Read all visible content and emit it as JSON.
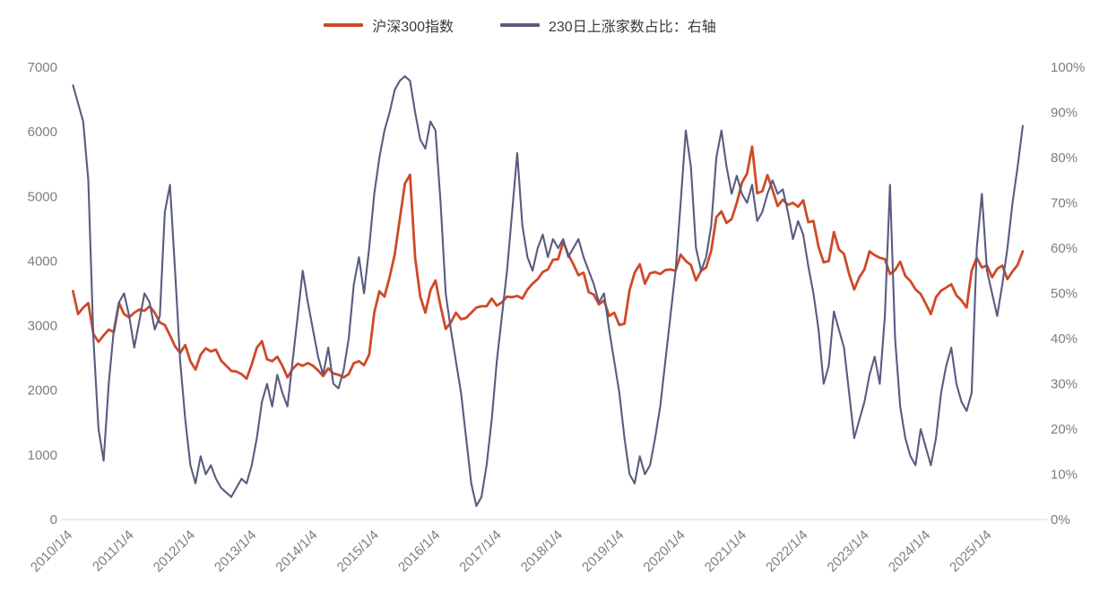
{
  "page": {
    "background": "#ffffff"
  },
  "legend": {
    "items": [
      {
        "label": "沪深300指数",
        "color": "#CE4A28"
      },
      {
        "label": "230日上涨家数占比：右轴",
        "color": "#585C7F"
      }
    ]
  },
  "chart_data": {
    "type": "line",
    "title": "",
    "grid": false,
    "legend_position": "top-center",
    "x_axis": {
      "range": [
        2009.95,
        2025.75
      ],
      "tick_years": [
        2010,
        2011,
        2012,
        2013,
        2014,
        2015,
        2016,
        2017,
        2018,
        2019,
        2020,
        2021,
        2022,
        2023,
        2024,
        2025
      ],
      "labels": [
        "2010/1/4",
        "2011/1/4",
        "2012/1/4",
        "2013/1/4",
        "2014/1/4",
        "2015/1/4",
        "2016/1/4",
        "2017/1/4",
        "2018/1/4",
        "2019/1/4",
        "2020/1/4",
        "2021/1/4",
        "2022/1/4",
        "2023/1/4",
        "2024/1/4",
        "2025/1/4"
      ]
    },
    "left_axis": {
      "range": [
        0,
        7000
      ],
      "ticks": [
        0,
        1000,
        2000,
        3000,
        4000,
        5000,
        6000,
        7000
      ],
      "series": "沪深300指数"
    },
    "right_axis": {
      "range": [
        0,
        100
      ],
      "tick_labels": [
        "0%",
        "10%",
        "20%",
        "30%",
        "40%",
        "50%",
        "60%",
        "70%",
        "80%",
        "90%",
        "100%"
      ],
      "series": "230日上涨家数占比"
    },
    "x_start_year": 2010.0,
    "x_step_years": 0.0833333,
    "series": [
      {
        "name": "沪深300指数",
        "axis": "left",
        "color": "#CE4A28",
        "values": [
          3535,
          3180,
          3280,
          3350,
          2870,
          2750,
          2850,
          2940,
          2900,
          3350,
          3180,
          3128,
          3200,
          3250,
          3230,
          3300,
          3200,
          3050,
          3010,
          2850,
          2680,
          2580,
          2700,
          2450,
          2320,
          2550,
          2650,
          2600,
          2630,
          2460,
          2380,
          2300,
          2290,
          2250,
          2180,
          2400,
          2660,
          2760,
          2480,
          2450,
          2520,
          2380,
          2200,
          2330,
          2410,
          2380,
          2420,
          2380,
          2310,
          2220,
          2340,
          2260,
          2240,
          2200,
          2250,
          2420,
          2450,
          2390,
          2550,
          3200,
          3530,
          3450,
          3750,
          4100,
          4650,
          5200,
          5335,
          4050,
          3450,
          3200,
          3550,
          3700,
          3300,
          2950,
          3050,
          3200,
          3100,
          3120,
          3200,
          3280,
          3300,
          3300,
          3420,
          3310,
          3360,
          3450,
          3440,
          3460,
          3420,
          3560,
          3650,
          3720,
          3830,
          3870,
          4020,
          4030,
          4300,
          4100,
          3950,
          3780,
          3820,
          3520,
          3480,
          3330,
          3390,
          3150,
          3200,
          3010,
          3030,
          3550,
          3820,
          3950,
          3650,
          3810,
          3830,
          3800,
          3860,
          3870,
          3850,
          4100,
          4000,
          3940,
          3700,
          3850,
          3900,
          4160,
          4680,
          4770,
          4590,
          4650,
          4900,
          5210,
          5350,
          5770,
          5050,
          5080,
          5330,
          5100,
          4850,
          4950,
          4870,
          4900,
          4840,
          4940,
          4600,
          4620,
          4220,
          3980,
          4000,
          4450,
          4180,
          4110,
          3800,
          3560,
          3750,
          3870,
          4150,
          4090,
          4050,
          4030,
          3800,
          3860,
          3990,
          3770,
          3690,
          3560,
          3490,
          3340,
          3180,
          3440,
          3540,
          3590,
          3640,
          3470,
          3390,
          3280,
          3850,
          4050,
          3900,
          3930,
          3750,
          3880,
          3930,
          3720,
          3840,
          3940,
          4150
        ]
      },
      {
        "name": "230日上涨家数占比：右轴",
        "axis": "right",
        "color": "#585C7F",
        "values": [
          96,
          92,
          88,
          75,
          40,
          20,
          13,
          30,
          42,
          48,
          50,
          45,
          38,
          44,
          50,
          48,
          42,
          45,
          68,
          74,
          55,
          35,
          22,
          12,
          8,
          14,
          10,
          12,
          9,
          7,
          6,
          5,
          7,
          9,
          8,
          12,
          18,
          26,
          30,
          25,
          32,
          28,
          25,
          35,
          45,
          55,
          48,
          42,
          36,
          32,
          38,
          30,
          29,
          33,
          40,
          52,
          58,
          50,
          60,
          72,
          80,
          86,
          90,
          95,
          97,
          98,
          97,
          90,
          84,
          82,
          88,
          86,
          70,
          50,
          42,
          35,
          28,
          18,
          8,
          3,
          5,
          12,
          22,
          35,
          45,
          55,
          68,
          81,
          65,
          58,
          55,
          60,
          63,
          58,
          62,
          60,
          62,
          58,
          60,
          62,
          58,
          55,
          52,
          48,
          50,
          42,
          35,
          28,
          18,
          10,
          8,
          14,
          10,
          12,
          18,
          25,
          35,
          45,
          55,
          70,
          86,
          78,
          60,
          55,
          58,
          65,
          80,
          86,
          78,
          72,
          76,
          72,
          70,
          74,
          66,
          68,
          72,
          75,
          72,
          73,
          68,
          62,
          66,
          63,
          56,
          50,
          42,
          30,
          34,
          46,
          42,
          38,
          28,
          18,
          22,
          26,
          32,
          36,
          30,
          45,
          74,
          40,
          25,
          18,
          14,
          12,
          20,
          16,
          12,
          18,
          28,
          34,
          38,
          30,
          26,
          24,
          28,
          60,
          72,
          55,
          50,
          45,
          52,
          60,
          70,
          78,
          87
        ]
      }
    ]
  }
}
